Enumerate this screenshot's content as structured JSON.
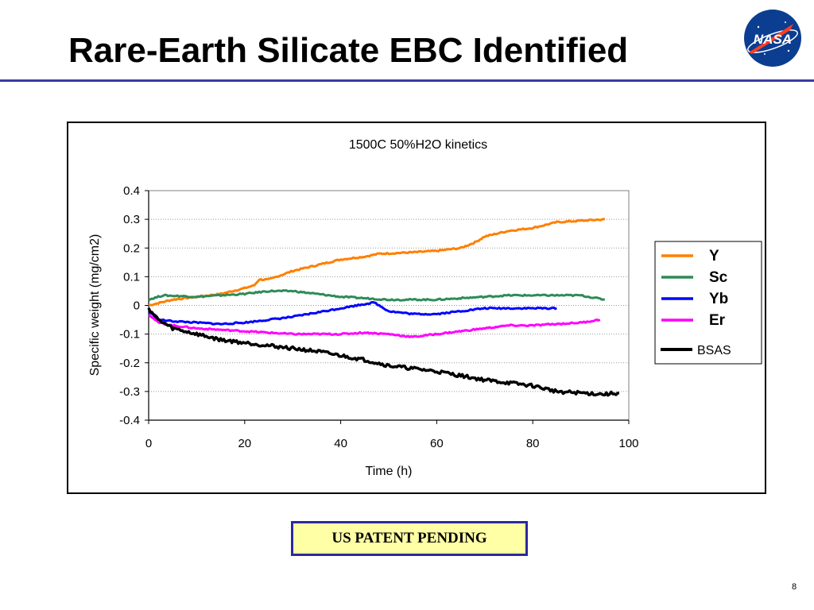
{
  "slide": {
    "title": "Rare-Earth Silicate EBC Identified",
    "page_number": "8",
    "patent_notice": "US PATENT PENDING",
    "logo_text": "NASA"
  },
  "colors": {
    "rule": "#3a3aa0",
    "patent_bg": "#ffffa6",
    "patent_border": "#2b2b9a"
  },
  "chart_data": {
    "type": "line",
    "title": "1500C 50%H2O kinetics",
    "xlabel": "Time (h)",
    "ylabel": "Specific weight (mg/cm2)",
    "xlim": [
      0,
      100
    ],
    "ylim": [
      -0.4,
      0.4
    ],
    "xticks": [
      "0",
      "20",
      "40",
      "60",
      "80",
      "100"
    ],
    "yticks": [
      "0.4",
      "0.3",
      "0.2",
      "0.1",
      "0",
      "-0.1",
      "-0.2",
      "-0.3",
      "-0.4"
    ],
    "grid": "horizontal dotted",
    "legend_placement": "right",
    "series": [
      {
        "name": "Y",
        "color": "#ff7f00",
        "legend_bold": true,
        "x": [
          0,
          5,
          10,
          15,
          20,
          22,
          23,
          25,
          30,
          35,
          40,
          45,
          48,
          55,
          60,
          65,
          68,
          70,
          75,
          80,
          85,
          90,
          95
        ],
        "y": [
          0.0,
          0.02,
          0.03,
          0.04,
          0.06,
          0.07,
          0.09,
          0.09,
          0.12,
          0.14,
          0.16,
          0.17,
          0.18,
          0.185,
          0.19,
          0.2,
          0.22,
          0.24,
          0.26,
          0.27,
          0.29,
          0.295,
          0.3
        ]
      },
      {
        "name": "Sc",
        "color": "#2e8b57",
        "legend_bold": true,
        "x": [
          0,
          3,
          10,
          20,
          25,
          30,
          35,
          40,
          45,
          50,
          55,
          60,
          65,
          70,
          75,
          80,
          85,
          90,
          95
        ],
        "y": [
          0.02,
          0.035,
          0.03,
          0.04,
          0.05,
          0.05,
          0.04,
          0.03,
          0.025,
          0.02,
          0.02,
          0.02,
          0.025,
          0.03,
          0.035,
          0.035,
          0.035,
          0.035,
          0.02
        ]
      },
      {
        "name": "Yb",
        "color": "#0000ff",
        "legend_bold": true,
        "x": [
          0,
          2,
          5,
          10,
          15,
          20,
          25,
          30,
          35,
          40,
          45,
          47,
          48,
          50,
          55,
          60,
          65,
          70,
          75,
          80,
          85
        ],
        "y": [
          -0.02,
          -0.05,
          -0.055,
          -0.06,
          -0.065,
          -0.06,
          -0.05,
          -0.04,
          -0.025,
          -0.01,
          0.005,
          0.01,
          0.0,
          -0.02,
          -0.03,
          -0.03,
          -0.02,
          -0.01,
          -0.01,
          -0.01,
          -0.01
        ]
      },
      {
        "name": "Er",
        "color": "#ff00ff",
        "legend_bold": true,
        "x": [
          0,
          2,
          5,
          10,
          15,
          20,
          25,
          30,
          35,
          40,
          45,
          50,
          55,
          60,
          65,
          70,
          75,
          80,
          85,
          90,
          94
        ],
        "y": [
          -0.03,
          -0.06,
          -0.07,
          -0.08,
          -0.085,
          -0.09,
          -0.095,
          -0.1,
          -0.1,
          -0.1,
          -0.095,
          -0.1,
          -0.11,
          -0.1,
          -0.09,
          -0.08,
          -0.07,
          -0.07,
          -0.065,
          -0.06,
          -0.05
        ]
      },
      {
        "name": "BSAS",
        "color": "#000000",
        "legend_bold": false,
        "x": [
          0,
          2,
          5,
          10,
          15,
          20,
          25,
          30,
          35,
          40,
          45,
          50,
          55,
          60,
          65,
          70,
          75,
          80,
          85,
          90,
          95,
          98
        ],
        "y": [
          -0.01,
          -0.05,
          -0.08,
          -0.1,
          -0.12,
          -0.13,
          -0.14,
          -0.15,
          -0.16,
          -0.175,
          -0.19,
          -0.21,
          -0.22,
          -0.23,
          -0.245,
          -0.26,
          -0.27,
          -0.28,
          -0.3,
          -0.305,
          -0.31,
          -0.305
        ]
      }
    ]
  }
}
